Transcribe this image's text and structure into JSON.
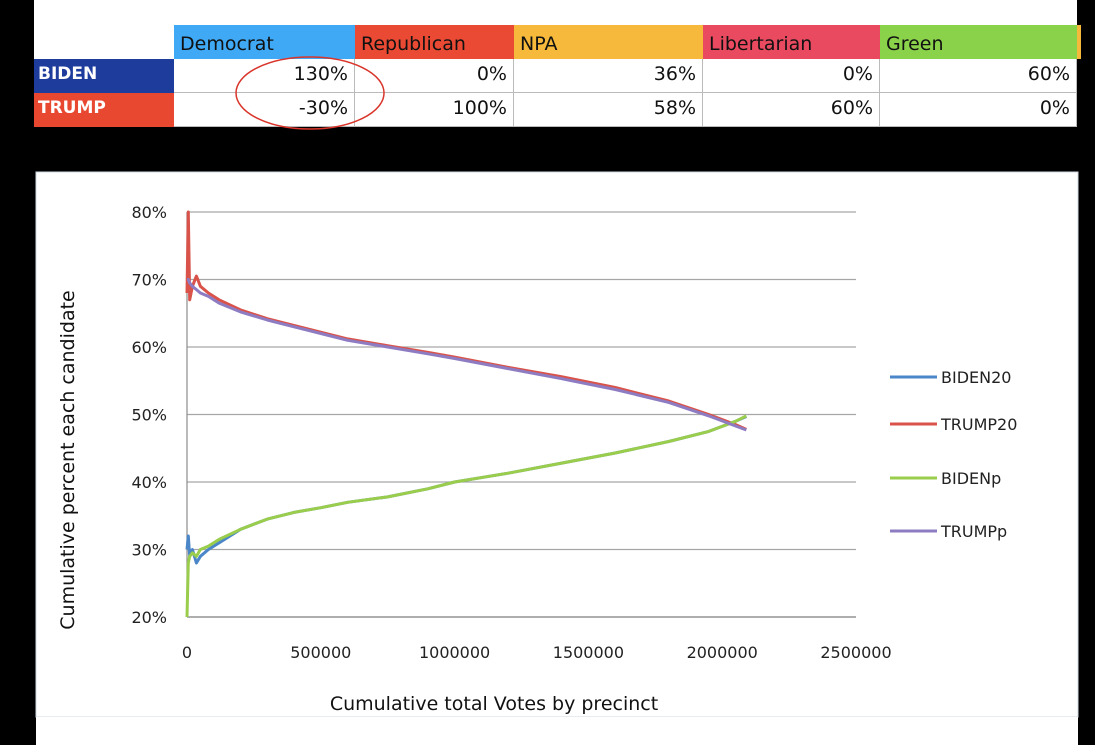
{
  "table": {
    "headers": [
      {
        "label": "Democrat",
        "color": "#3fa9f5"
      },
      {
        "label": "Republican",
        "color": "#ea4a33"
      },
      {
        "label": "NPA",
        "color": "#f6b93b"
      },
      {
        "label": "Libertarian",
        "color": "#e94a5f"
      },
      {
        "label": "Green",
        "color": "#8bd24b"
      }
    ],
    "rows": [
      {
        "label": "BIDEN",
        "color": "#1d3c9c",
        "values": [
          "130%",
          "0%",
          "36%",
          "0%",
          "60%"
        ]
      },
      {
        "label": "TRUMP",
        "color": "#e8482f",
        "values": [
          "-30%",
          "100%",
          "58%",
          "60%",
          "0%"
        ]
      }
    ],
    "highlight_color": "#d9352a"
  },
  "chart_data": {
    "type": "line",
    "title": "",
    "xlabel": "Cumulative total Votes by precinct",
    "ylabel": "Cumulative percent each candidate",
    "xlim": [
      0,
      2500000
    ],
    "ylim": [
      0.2,
      0.8
    ],
    "x_ticks": [
      "0",
      "500000",
      "1000000",
      "1500000",
      "2000000",
      "2500000"
    ],
    "y_ticks": [
      "20%",
      "30%",
      "40%",
      "50%",
      "60%",
      "70%",
      "80%"
    ],
    "grid": "horizontal",
    "legend": "right",
    "series": [
      {
        "name": "BIDEN20",
        "color": "#4a86c8",
        "x": [
          0,
          5000,
          10000,
          20000,
          35000,
          50000,
          80000,
          120000,
          200000,
          300000,
          400000,
          500000,
          600000,
          750000,
          900000,
          1000000,
          1200000,
          1400000,
          1600000,
          1800000,
          1950000,
          2050000,
          2090000
        ],
        "y": [
          0.3,
          0.32,
          0.29,
          0.3,
          0.28,
          0.29,
          0.3,
          0.31,
          0.33,
          0.345,
          0.355,
          0.362,
          0.37,
          0.378,
          0.39,
          0.4,
          0.413,
          0.428,
          0.443,
          0.46,
          0.475,
          0.49,
          0.497
        ]
      },
      {
        "name": "TRUMP20",
        "color": "#d9534a",
        "x": [
          0,
          5000,
          10000,
          20000,
          35000,
          50000,
          80000,
          120000,
          200000,
          300000,
          400000,
          500000,
          600000,
          750000,
          900000,
          1000000,
          1200000,
          1400000,
          1600000,
          1800000,
          1950000,
          2050000,
          2090000
        ],
        "y": [
          0.68,
          0.8,
          0.67,
          0.69,
          0.705,
          0.69,
          0.68,
          0.67,
          0.655,
          0.642,
          0.632,
          0.622,
          0.612,
          0.602,
          0.592,
          0.585,
          0.57,
          0.556,
          0.54,
          0.52,
          0.5,
          0.485,
          0.478
        ]
      },
      {
        "name": "BIDENp",
        "color": "#9acd4b",
        "x": [
          0,
          5000,
          10000,
          20000,
          35000,
          50000,
          80000,
          120000,
          200000,
          300000,
          400000,
          500000,
          600000,
          750000,
          900000,
          1000000,
          1200000,
          1400000,
          1600000,
          1800000,
          1950000,
          2050000,
          2090000
        ],
        "y": [
          0.2,
          0.28,
          0.29,
          0.295,
          0.29,
          0.3,
          0.305,
          0.315,
          0.33,
          0.345,
          0.355,
          0.362,
          0.37,
          0.378,
          0.39,
          0.4,
          0.413,
          0.428,
          0.443,
          0.46,
          0.475,
          0.49,
          0.498
        ]
      },
      {
        "name": "TRUMPp",
        "color": "#8e7cc3",
        "x": [
          0,
          5000,
          10000,
          20000,
          35000,
          50000,
          80000,
          120000,
          200000,
          300000,
          400000,
          500000,
          600000,
          750000,
          900000,
          1000000,
          1200000,
          1400000,
          1600000,
          1800000,
          1950000,
          2050000,
          2090000
        ],
        "y": [
          0.7,
          0.7,
          0.695,
          0.69,
          0.685,
          0.68,
          0.675,
          0.665,
          0.652,
          0.64,
          0.63,
          0.62,
          0.61,
          0.6,
          0.59,
          0.583,
          0.568,
          0.553,
          0.537,
          0.518,
          0.498,
          0.483,
          0.477
        ]
      }
    ]
  }
}
